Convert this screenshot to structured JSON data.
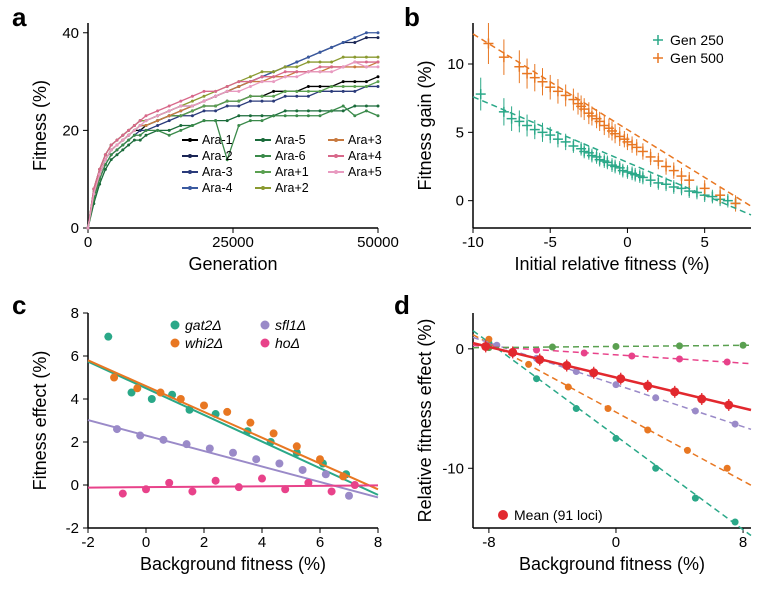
{
  "panel_a": {
    "label": "a",
    "type": "line",
    "xlabel": "Generation",
    "ylabel": "Fitness (%)",
    "xlim": [
      0,
      50000
    ],
    "ylim": [
      0,
      42
    ],
    "xticks": [
      0,
      25000,
      50000
    ],
    "yticks": [
      0,
      20,
      40
    ],
    "axis_fontsize": 18,
    "tick_fontsize": 15,
    "background_color": "#ffffff",
    "series": [
      {
        "name": "Ara-1",
        "color": "#000000"
      },
      {
        "name": "Ara-2",
        "color": "#1a2555"
      },
      {
        "name": "Ara-3",
        "color": "#2a3a7a"
      },
      {
        "name": "Ara-4",
        "color": "#3a5aa0"
      },
      {
        "name": "Ara-5",
        "color": "#1a6b3a"
      },
      {
        "name": "Ara-6",
        "color": "#3a8a4a"
      },
      {
        "name": "Ara+1",
        "color": "#5aa050"
      },
      {
        "name": "Ara+2",
        "color": "#8a9a30"
      },
      {
        "name": "Ara+3",
        "color": "#c87a40"
      },
      {
        "name": "Ara+4",
        "color": "#d8688a"
      },
      {
        "name": "Ara+5",
        "color": "#e89ac0"
      }
    ],
    "xdata": [
      0,
      1000,
      2000,
      3000,
      4000,
      5000,
      6000,
      7000,
      8000,
      9000,
      10000,
      12000,
      14000,
      16000,
      18000,
      20000,
      22000,
      24000,
      26000,
      28000,
      30000,
      32000,
      34000,
      36000,
      38000,
      40000,
      42000,
      44000,
      46000,
      48000,
      50000
    ],
    "ydata": [
      [
        0,
        7,
        11,
        14,
        16,
        17,
        18,
        19,
        20,
        20,
        21,
        22,
        23,
        23,
        24,
        25,
        25,
        26,
        26,
        27,
        27,
        28,
        28,
        28,
        29,
        29,
        29,
        30,
        30,
        30,
        31
      ],
      [
        0,
        8,
        12,
        15,
        17,
        18,
        19,
        20,
        21,
        22,
        22,
        23,
        24,
        25,
        25,
        26,
        27,
        28,
        29,
        30,
        31,
        32,
        33,
        34,
        35,
        36,
        37,
        38,
        38,
        39,
        39
      ],
      [
        0,
        6,
        10,
        13,
        15,
        16,
        17,
        18,
        19,
        20,
        20,
        21,
        22,
        23,
        23,
        24,
        24,
        25,
        25,
        26,
        26,
        26,
        27,
        27,
        27,
        28,
        28,
        28,
        28,
        29,
        29
      ],
      [
        0,
        7,
        11,
        14,
        16,
        17,
        18,
        19,
        20,
        21,
        21,
        22,
        23,
        24,
        25,
        26,
        27,
        28,
        29,
        30,
        31,
        32,
        33,
        34,
        35,
        36,
        37,
        38,
        39,
        40,
        40
      ],
      [
        0,
        5,
        9,
        12,
        14,
        15,
        16,
        17,
        18,
        18,
        19,
        20,
        20,
        21,
        21,
        22,
        22,
        22,
        23,
        23,
        23,
        23,
        24,
        24,
        24,
        24,
        24,
        24,
        25,
        25,
        25
      ],
      [
        0,
        6,
        10,
        13,
        15,
        16,
        17,
        18,
        19,
        19,
        20,
        20,
        19,
        20,
        21,
        22,
        22,
        14,
        21,
        22,
        22,
        23,
        23,
        23,
        23,
        23,
        24,
        25,
        23,
        24,
        23
      ],
      [
        0,
        7,
        11,
        14,
        16,
        17,
        18,
        19,
        20,
        21,
        21,
        22,
        23,
        23,
        24,
        25,
        25,
        26,
        26,
        27,
        27,
        27,
        28,
        28,
        28,
        28,
        29,
        29,
        29,
        29,
        30
      ],
      [
        0,
        8,
        12,
        15,
        17,
        18,
        19,
        20,
        21,
        22,
        22,
        23,
        24,
        25,
        26,
        27,
        28,
        29,
        30,
        31,
        32,
        32,
        33,
        33,
        34,
        34,
        34,
        35,
        35,
        35,
        35
      ],
      [
        0,
        7,
        11,
        14,
        16,
        17,
        18,
        19,
        20,
        21,
        21,
        22,
        23,
        24,
        25,
        26,
        27,
        28,
        29,
        30,
        30,
        31,
        31,
        32,
        32,
        32,
        33,
        33,
        33,
        33,
        34
      ],
      [
        0,
        8,
        12,
        15,
        17,
        18,
        19,
        20,
        21,
        22,
        23,
        24,
        25,
        26,
        27,
        28,
        28,
        29,
        30,
        30,
        31,
        31,
        32,
        32,
        32,
        33,
        33,
        33,
        34,
        34,
        34
      ],
      [
        0,
        7,
        11,
        14,
        16,
        17,
        18,
        19,
        20,
        21,
        22,
        23,
        24,
        25,
        25,
        26,
        27,
        28,
        28,
        29,
        30,
        30,
        31,
        31,
        32,
        32,
        32,
        33,
        34,
        33,
        33
      ]
    ]
  },
  "panel_b": {
    "label": "b",
    "type": "scatter",
    "xlabel": "Initial relative fitness (%)",
    "ylabel": "Fitness gain (%)",
    "xlim": [
      -10,
      8
    ],
    "ylim": [
      -2,
      13
    ],
    "xticks": [
      -10,
      -5,
      0,
      5
    ],
    "yticks": [
      0,
      5,
      10
    ],
    "axis_fontsize": 18,
    "tick_fontsize": 15,
    "series": [
      {
        "name": "Gen 250",
        "color": "#2aa888",
        "marker": "plus"
      },
      {
        "name": "Gen 500",
        "color": "#e87722",
        "marker": "plus"
      }
    ],
    "gen250": {
      "x": [
        -9.5,
        -8,
        -7.5,
        -7,
        -6.5,
        -6,
        -5.5,
        -5,
        -4.5,
        -4,
        -3.5,
        -3,
        -2.8,
        -2.5,
        -2.3,
        -2,
        -1.8,
        -1.5,
        -1.3,
        -1,
        -0.8,
        -0.5,
        -0.3,
        0,
        0.3,
        0.5,
        0.8,
        1,
        1.5,
        2,
        2.5,
        3,
        3.5,
        4,
        4.5,
        5,
        5.5,
        6,
        6.5,
        7
      ],
      "y": [
        7.8,
        6.5,
        6,
        5.8,
        5.5,
        5.2,
        5,
        4.8,
        4.5,
        4.3,
        4,
        3.8,
        3.6,
        3.5,
        3.3,
        3.2,
        3,
        2.9,
        2.8,
        2.6,
        2.5,
        2.4,
        2.2,
        2.1,
        2,
        1.9,
        1.8,
        1.7,
        1.5,
        1.3,
        1.2,
        1,
        0.9,
        0.7,
        0.6,
        0.4,
        0.3,
        0.1,
        0,
        -0.2
      ],
      "err": [
        1.2,
        1,
        0.9,
        0.8,
        0.8,
        0.7,
        0.7,
        0.6,
        0.6,
        0.6,
        0.5,
        0.5,
        0.5,
        0.5,
        0.5,
        0.5,
        0.5,
        0.5,
        0.5,
        0.5,
        0.5,
        0.5,
        0.5,
        0.5,
        0.5,
        0.5,
        0.5,
        0.5,
        0.5,
        0.5,
        0.5,
        0.5,
        0.5,
        0.5,
        0.5,
        0.5,
        0.5,
        0.5,
        0.5,
        0.5
      ]
    },
    "gen500": {
      "x": [
        -9,
        -8,
        -7,
        -6.5,
        -6,
        -5.5,
        -5,
        -4.5,
        -4,
        -3.5,
        -3.2,
        -3,
        -2.8,
        -2.5,
        -2.3,
        -2,
        -1.8,
        -1.5,
        -1.2,
        -1,
        -0.8,
        -0.5,
        -0.2,
        0,
        0.3,
        0.6,
        1,
        1.5,
        2,
        2.5,
        3,
        3.5,
        4,
        5,
        6,
        7
      ],
      "y": [
        11.5,
        10.5,
        9.8,
        9.3,
        9,
        8.7,
        8.3,
        8,
        7.7,
        7.4,
        7.1,
        6.9,
        6.7,
        6.4,
        6.2,
        6,
        5.8,
        5.5,
        5.3,
        5.1,
        4.9,
        4.7,
        4.5,
        4.3,
        4.1,
        3.9,
        3.6,
        3.2,
        2.9,
        2.5,
        2.2,
        1.8,
        1.5,
        0.9,
        0.4,
        -0.2
      ],
      "err": [
        1.5,
        1.3,
        1.2,
        1.1,
        1,
        1,
        0.9,
        0.9,
        0.8,
        0.8,
        0.8,
        0.8,
        0.8,
        0.8,
        0.7,
        0.7,
        0.7,
        0.7,
        0.7,
        0.7,
        0.7,
        0.7,
        0.6,
        0.6,
        0.6,
        0.6,
        0.6,
        0.6,
        0.6,
        0.6,
        0.6,
        0.6,
        0.6,
        0.6,
        0.6,
        0.6
      ]
    },
    "fit250": {
      "slope": -0.48,
      "intercept": 2.8
    },
    "fit500": {
      "slope": -0.7,
      "intercept": 5.2
    }
  },
  "panel_c": {
    "label": "c",
    "type": "scatter",
    "xlabel": "Background fitness (%)",
    "ylabel": "Fitness effect (%)",
    "xlim": [
      -2,
      8
    ],
    "ylim": [
      -2,
      8
    ],
    "xticks": [
      -2,
      0,
      2,
      4,
      6,
      8
    ],
    "yticks": [
      -2,
      0,
      2,
      4,
      6,
      8
    ],
    "axis_fontsize": 18,
    "tick_fontsize": 15,
    "series": [
      {
        "name": "gat2Δ",
        "color": "#2aa888"
      },
      {
        "name": "whi2Δ",
        "color": "#e87722"
      },
      {
        "name": "sfl1Δ",
        "color": "#9a8ac8"
      },
      {
        "name": "hoΔ",
        "color": "#e8428a"
      }
    ],
    "gat2": {
      "x": [
        -1.3,
        -0.5,
        0.2,
        0.9,
        1.5,
        2.4,
        3.5,
        4.3,
        5.2,
        6.1,
        6.9
      ],
      "y": [
        6.9,
        4.3,
        4.0,
        4.2,
        3.5,
        3.3,
        2.5,
        2.0,
        1.5,
        1.0,
        0.5
      ],
      "slope": -0.62,
      "intercept": 4.5
    },
    "whi2": {
      "x": [
        -1.1,
        -0.3,
        0.5,
        1.2,
        2.0,
        2.8,
        3.6,
        4.4,
        5.2,
        6.0,
        6.8
      ],
      "y": [
        5.0,
        4.5,
        4.3,
        4.0,
        3.7,
        3.4,
        2.9,
        2.4,
        1.8,
        1.2,
        0.4
      ],
      "slope": -0.6,
      "intercept": 4.6
    },
    "sfl1": {
      "x": [
        -1.0,
        -0.2,
        0.6,
        1.4,
        2.2,
        3.0,
        3.8,
        4.6,
        5.4,
        6.2,
        7.0
      ],
      "y": [
        2.6,
        2.3,
        2.1,
        1.9,
        1.7,
        1.5,
        1.2,
        1.0,
        0.7,
        0.5,
        -0.5
      ],
      "slope": -0.36,
      "intercept": 2.3
    },
    "ho": {
      "x": [
        -0.8,
        0,
        0.8,
        1.6,
        2.4,
        3.2,
        4.0,
        4.8,
        5.6,
        6.4,
        7.2
      ],
      "y": [
        -0.4,
        -0.2,
        0.1,
        -0.3,
        0.2,
        -0.1,
        0.3,
        -0.2,
        0.1,
        -0.3,
        0.0
      ],
      "slope": 0.01,
      "intercept": -0.1
    }
  },
  "panel_d": {
    "label": "d",
    "type": "scatter",
    "xlabel": "Background fitness (%)",
    "ylabel": "Relative fitness effect (%)",
    "xlim": [
      -9,
      8.5
    ],
    "ylim": [
      -15,
      3
    ],
    "xticks": [
      -8,
      0,
      8
    ],
    "yticks": [
      -10,
      0
    ],
    "axis_fontsize": 18,
    "tick_fontsize": 15,
    "mean_label": "Mean (91 loci)",
    "mean_color": "#e2282e",
    "mean": {
      "x": [
        -8.2,
        -6.5,
        -4.8,
        -3.1,
        -1.4,
        0.3,
        2.0,
        3.7,
        5.4,
        7.1
      ],
      "y": [
        0.2,
        -0.3,
        -0.9,
        -1.4,
        -2.0,
        -2.5,
        -3.1,
        -3.6,
        -4.2,
        -4.7
      ],
      "err": [
        0.5,
        0.5,
        0.5,
        0.5,
        0.5,
        0.5,
        0.5,
        0.5,
        0.5,
        0.5
      ],
      "slope": -0.32,
      "intercept": -2.4
    },
    "series": [
      {
        "color": "#2aa888",
        "x": [
          -8,
          -5,
          -2.5,
          0,
          2.5,
          5,
          7.5
        ],
        "y": [
          0.5,
          -2.5,
          -5,
          -7.5,
          -10,
          -12.5,
          -14.5
        ],
        "slope": -0.98,
        "intercept": -7.3
      },
      {
        "color": "#e87722",
        "x": [
          -8,
          -5.5,
          -3,
          -0.5,
          2,
          4.5,
          7
        ],
        "y": [
          0.8,
          -1.3,
          -3.2,
          -5,
          -6.8,
          -8.5,
          -10
        ],
        "slope": -0.72,
        "intercept": -5.3
      },
      {
        "color": "#9a8ac8",
        "x": [
          -7.5,
          -5,
          -2.5,
          0,
          2.5,
          5,
          7.5
        ],
        "y": [
          0.3,
          -0.8,
          -1.9,
          -3,
          -4.1,
          -5.2,
          -6.3
        ],
        "slope": -0.44,
        "intercept": -3.0
      },
      {
        "color": "#e8428a",
        "x": [
          -8,
          -5,
          -2,
          1,
          4,
          7
        ],
        "y": [
          0.2,
          -0.1,
          -0.35,
          -0.6,
          -0.85,
          -1.1
        ],
        "slope": -0.087,
        "intercept": -0.5
      },
      {
        "color": "#5aa050",
        "x": [
          -8,
          -4,
          0,
          4,
          8
        ],
        "y": [
          0.1,
          0.15,
          0.2,
          0.25,
          0.3
        ],
        "slope": 0.012,
        "intercept": 0.2
      }
    ]
  }
}
